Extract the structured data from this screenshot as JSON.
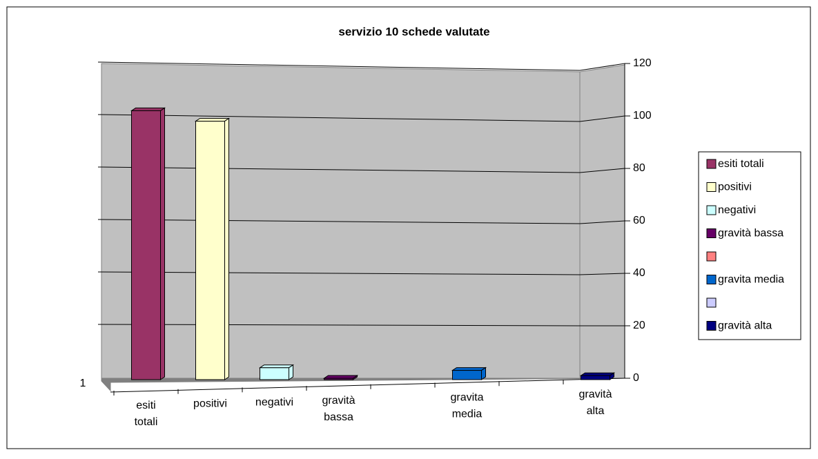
{
  "chart_data": {
    "type": "bar",
    "title": "servizio 10 schede valutate",
    "series_label": "1",
    "categories": [
      "esiti totali",
      "positivi",
      "negativi",
      "gravità bassa",
      null,
      "gravita media",
      null,
      "gravità alta"
    ],
    "values": [
      102,
      98,
      4,
      0,
      null,
      3,
      null,
      1
    ],
    "colors": [
      "#993366",
      "#ffffcc",
      "#ccffff",
      "#660066",
      "#ff8080",
      "#0066cc",
      "#ccccff",
      "#000080"
    ],
    "ylim": [
      0,
      120
    ],
    "yticks": [
      0,
      20,
      40,
      60,
      80,
      100,
      120
    ],
    "grid": true,
    "legend": "right"
  }
}
